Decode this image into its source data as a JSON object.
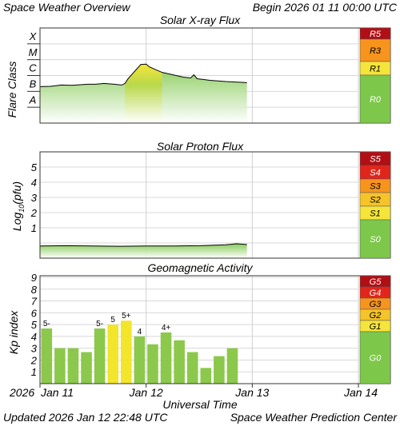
{
  "header": {
    "title": "Space Weather Overview",
    "begin": "Begin 2026 01 11 00:00 UTC",
    "updated": "Updated 2026 Jan 12 22:48 UTC",
    "source": "Space Weather Prediction Center"
  },
  "time_axis": {
    "label": "Universal Time",
    "year": "2026",
    "ticks": [
      "Jan 11",
      "Jan 12",
      "Jan 13",
      "Jan 14"
    ],
    "start_day": 11,
    "days": 3
  },
  "colors": {
    "green": "#7dc74a",
    "yellow": "#f5e53a",
    "orange": "#f7941d",
    "red": "#e0261b",
    "darkred": "#b10f14",
    "line": "#000000",
    "kp_green": "#8cc84b",
    "kp_yellow": "#f3e52a"
  },
  "xray": {
    "title": "Solar X-ray Flux",
    "ylabel": "Flare Class",
    "classes": [
      "X",
      "M",
      "C",
      "B",
      "A"
    ],
    "scale": [
      {
        "label": "R5",
        "color": "#b10f14"
      },
      {
        "label": "R3",
        "color": "#f7941d"
      },
      {
        "label": "R1",
        "color": "#f5e53a"
      },
      {
        "label": "R0",
        "color": "#7dc74a"
      }
    ]
  },
  "proton": {
    "title": "Solar Proton Flux",
    "ylabel": "Log10(pfu)",
    "ticks": [
      "5",
      "4",
      "3",
      "2",
      "1"
    ],
    "scale": [
      {
        "label": "S5",
        "color": "#b10f14"
      },
      {
        "label": "S4",
        "color": "#e0261b"
      },
      {
        "label": "S3",
        "color": "#f7941d"
      },
      {
        "label": "S2",
        "color": "#f5c32a"
      },
      {
        "label": "S1",
        "color": "#f5e53a"
      },
      {
        "label": "S0",
        "color": "#7dc74a"
      }
    ]
  },
  "kp": {
    "title": "Geomagnetic Activity",
    "ylabel": "Kp index",
    "ticks": [
      "9",
      "8",
      "7",
      "6",
      "5",
      "4",
      "3",
      "2",
      "1"
    ],
    "scale": [
      {
        "label": "G5",
        "color": "#b10f14"
      },
      {
        "label": "G4",
        "color": "#e0261b"
      },
      {
        "label": "G3",
        "color": "#f7941d"
      },
      {
        "label": "G2",
        "color": "#f5c32a"
      },
      {
        "label": "G1",
        "color": "#f5e53a"
      },
      {
        "label": "G0",
        "color": "#7dc74a"
      }
    ]
  },
  "chart_data": [
    {
      "type": "area",
      "title": "Solar X-ray Flux",
      "ylabel": "Flare Class",
      "xlabel": "Universal Time",
      "scale": "log",
      "ylim": [
        -9,
        -3
      ],
      "x_unit": "days since 2026-01-11 00:00 UTC",
      "x": [
        0,
        0.1,
        0.2,
        0.3,
        0.45,
        0.52,
        0.6,
        0.7,
        0.77,
        0.8,
        0.83,
        0.95,
        1.0,
        1.03,
        1.08,
        1.15,
        1.25,
        1.35,
        1.42,
        1.45,
        1.48,
        1.6,
        1.75,
        1.95
      ],
      "y": [
        -6.7,
        -6.68,
        -6.6,
        -6.62,
        -6.55,
        -6.55,
        -6.5,
        -6.55,
        -6.6,
        -6.5,
        -6.2,
        -5.3,
        -5.28,
        -5.45,
        -5.6,
        -5.8,
        -5.95,
        -6.1,
        -6.15,
        -5.95,
        -6.2,
        -6.3,
        -6.38,
        -6.45
      ]
    },
    {
      "type": "area",
      "title": "Solar Proton Flux",
      "ylabel": "Log10(pfu)",
      "xlabel": "Universal Time",
      "ylim": [
        -1,
        6
      ],
      "x_unit": "days since 2026-01-11 00:00 UTC",
      "x": [
        0,
        0.25,
        0.5,
        0.75,
        1.0,
        1.25,
        1.5,
        1.75,
        1.85,
        1.95
      ],
      "y": [
        -0.2,
        -0.18,
        -0.2,
        -0.22,
        -0.2,
        -0.2,
        -0.18,
        -0.12,
        -0.05,
        -0.1
      ]
    },
    {
      "type": "bar",
      "title": "Geomagnetic Activity",
      "ylabel": "Kp index",
      "xlabel": "Universal Time",
      "ylim": [
        0,
        9
      ],
      "x_unit": "days since 2026-01-11 00:00 UTC",
      "x": [
        0,
        0.125,
        0.25,
        0.375,
        0.5,
        0.625,
        0.75,
        0.875,
        1.0,
        1.125,
        1.25,
        1.375,
        1.5,
        1.625,
        1.75,
        1.875
      ],
      "values": [
        4.67,
        3.0,
        3.0,
        2.67,
        4.67,
        5.0,
        5.33,
        4.0,
        3.33,
        4.33,
        3.67,
        2.67,
        1.33,
        2.33,
        3.0,
        0
      ],
      "labels": [
        "5-",
        "",
        "",
        "",
        "5-",
        "5",
        "5+",
        "4",
        "",
        "4+",
        "",
        "",
        "",
        "",
        "",
        ""
      ]
    }
  ]
}
